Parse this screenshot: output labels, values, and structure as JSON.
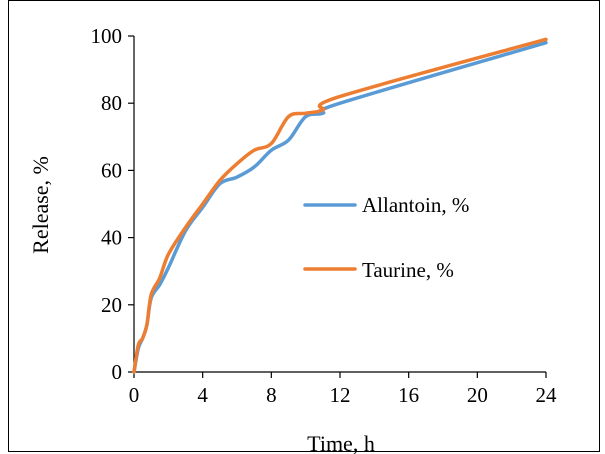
{
  "chart_data": {
    "type": "line",
    "xlabel": "Time, h",
    "ylabel": "Release, %",
    "xlim": [
      0,
      24
    ],
    "ylim": [
      0,
      100
    ],
    "x_ticks": [
      0,
      4,
      8,
      12,
      16,
      20,
      24
    ],
    "y_ticks": [
      0,
      20,
      40,
      60,
      80,
      100
    ],
    "grid": false,
    "legend_position": "right",
    "series": [
      {
        "name": "Allantoin, %",
        "color": "#5B9BD5",
        "x": [
          0,
          0.25,
          0.5,
          0.75,
          1,
          1.5,
          2,
          3,
          4,
          5,
          6,
          7,
          8,
          9,
          10,
          11,
          12,
          24
        ],
        "y": [
          0,
          7,
          10,
          14,
          22,
          26,
          31,
          42,
          49,
          56,
          58,
          61,
          66,
          69,
          76,
          77,
          80,
          98
        ]
      },
      {
        "name": "Taurine, %",
        "color": "#ED7D31",
        "x": [
          0,
          0.25,
          0.5,
          0.75,
          1,
          1.5,
          2,
          3,
          4,
          5,
          6,
          7,
          8,
          9,
          10,
          11,
          12,
          24
        ],
        "y": [
          0,
          8,
          10,
          14,
          23,
          28,
          35,
          43,
          50,
          57,
          62,
          66,
          68,
          76,
          77,
          78,
          82,
          99
        ]
      }
    ]
  }
}
